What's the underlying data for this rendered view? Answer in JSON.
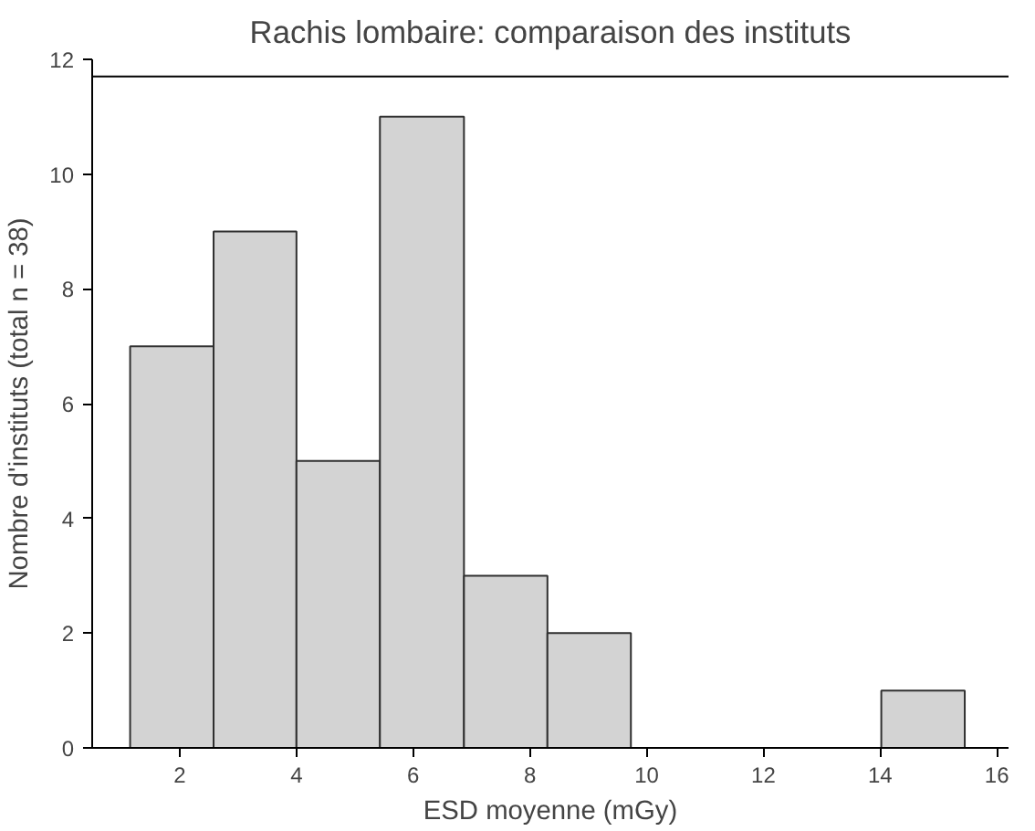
{
  "chart_data": {
    "type": "histogram",
    "title": "Rachis lombaire: comparaison des instituts",
    "xlabel": "ESD moyenne (mGy)",
    "ylabel": "Nombre d'instituts (total n = 38)",
    "bins": [
      1.15,
      2.58,
      4.0,
      5.43,
      6.87,
      8.3,
      9.73,
      14.02,
      15.45
    ],
    "values": [
      7,
      9,
      5,
      11,
      3,
      2,
      0,
      1
    ],
    "color": "#d3d3d3",
    "xlim": [
      0.5,
      16.2
    ],
    "xticks": [
      2,
      4,
      6,
      8,
      10,
      12,
      14,
      16
    ],
    "ylim": [
      0,
      12
    ],
    "yticks": [
      0,
      2,
      4,
      6,
      8,
      10,
      12
    ],
    "ref_lines": [
      {
        "axis": "y",
        "value": 11.7,
        "color": "#000000"
      }
    ],
    "grid": false
  }
}
